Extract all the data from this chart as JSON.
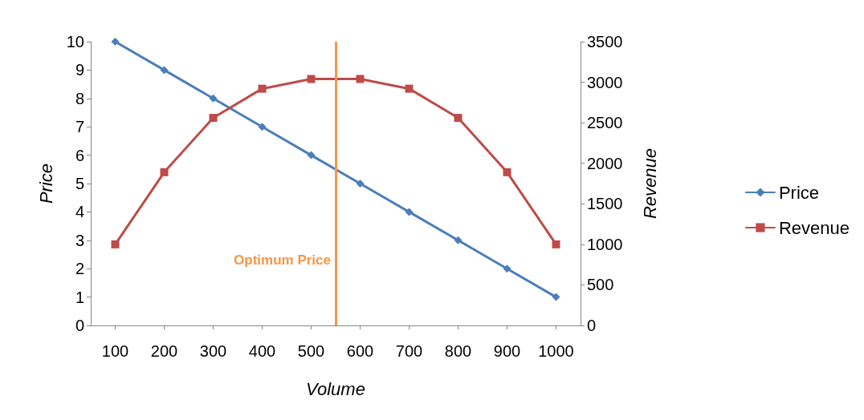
{
  "chart_data": {
    "type": "line",
    "xlabel": "Volume",
    "ylabel": "Price",
    "y2label": "Revenue",
    "x": [
      100,
      200,
      300,
      400,
      500,
      600,
      700,
      800,
      900,
      1000
    ],
    "xlim": [
      50,
      1050
    ],
    "xticks": [
      100,
      200,
      300,
      400,
      500,
      600,
      700,
      800,
      900,
      1000
    ],
    "ylim": [
      0,
      10
    ],
    "yticks": [
      0,
      1,
      2,
      3,
      4,
      5,
      6,
      7,
      8,
      9,
      10
    ],
    "y2lim": [
      0,
      3500
    ],
    "y2ticks": [
      0,
      500,
      1000,
      1500,
      2000,
      2500,
      3000,
      3500
    ],
    "series": [
      {
        "name": "Price",
        "color": "#4a7ebb",
        "marker": "diamond",
        "values": [
          10,
          9,
          8,
          7,
          6,
          5,
          4,
          3,
          2,
          1
        ]
      },
      {
        "name": "Revenue",
        "color": "#be4b48",
        "marker": "square",
        "axis": "y2",
        "values": [
          1000,
          1890,
          2560,
          2920,
          3040,
          3040,
          2920,
          2560,
          1890,
          1000
        ]
      }
    ],
    "ref_lines": [
      {
        "axis": "x",
        "value": 550,
        "label": "Optimum Price",
        "color": "#f79646"
      }
    ],
    "grid": false,
    "legend": "right",
    "line_style": "solid"
  }
}
